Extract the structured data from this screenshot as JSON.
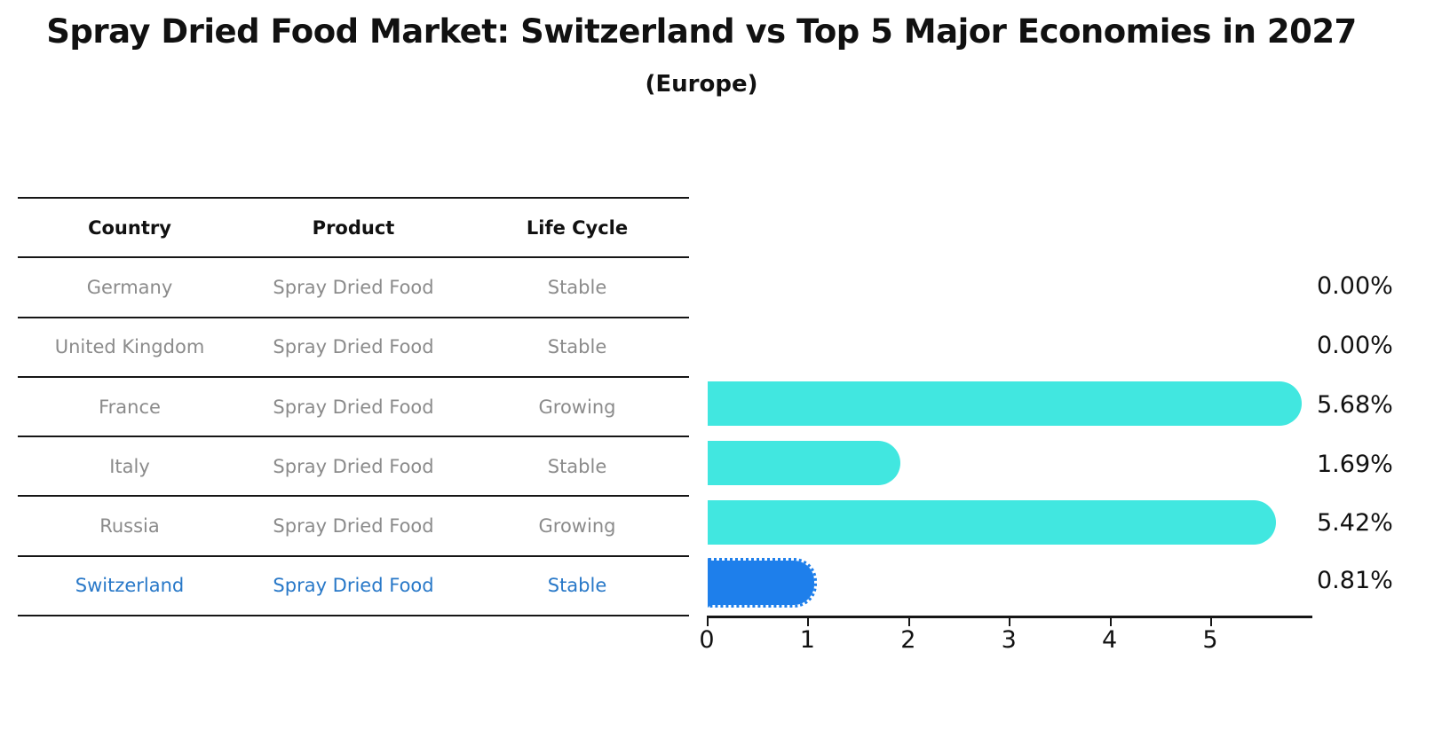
{
  "title": "Spray Dried Food Market: Switzerland vs Top 5 Major Economies in 2027",
  "subtitle": "(Europe)",
  "table": {
    "headers": [
      "Country",
      "Product",
      "Life Cycle"
    ],
    "rows": [
      {
        "country": "Germany",
        "product": "Spray Dried Food",
        "life_cycle": "Stable",
        "highlighted": false
      },
      {
        "country": "United Kingdom",
        "product": "Spray Dried Food",
        "life_cycle": "Stable",
        "highlighted": false
      },
      {
        "country": "France",
        "product": "Spray Dried Food",
        "life_cycle": "Growing",
        "highlighted": false
      },
      {
        "country": "Italy",
        "product": "Spray Dried Food",
        "life_cycle": "Stable",
        "highlighted": false
      },
      {
        "country": "Russia",
        "product": "Spray Dried Food",
        "life_cycle": "Growing",
        "highlighted": false
      },
      {
        "country": "Switzerland",
        "product": "Spray Dried Food",
        "life_cycle": "Stable",
        "highlighted": true
      }
    ]
  },
  "chart_data": {
    "type": "bar",
    "orientation": "horizontal",
    "title": "Spray Dried Food Market: Switzerland vs Top 5 Major Economies in 2027 (Europe)",
    "categories": [
      "Germany",
      "United Kingdom",
      "France",
      "Italy",
      "Russia",
      "Switzerland"
    ],
    "values": [
      0.0,
      0.0,
      5.68,
      1.69,
      5.42,
      0.81
    ],
    "value_labels": [
      "0.00%",
      "0.00%",
      "5.68%",
      "1.69%",
      "5.42%",
      "0.81%"
    ],
    "xlabel": "",
    "ylabel": "",
    "xlim": [
      0,
      6
    ],
    "xticks": [
      "0",
      "1",
      "2",
      "3",
      "4",
      "5"
    ],
    "grid": false,
    "legend": false,
    "bar_color": "#41E7E0",
    "highlight_color": "#1E7FEB",
    "highlight_index": 5,
    "highlight_style": "dotted-outline"
  }
}
